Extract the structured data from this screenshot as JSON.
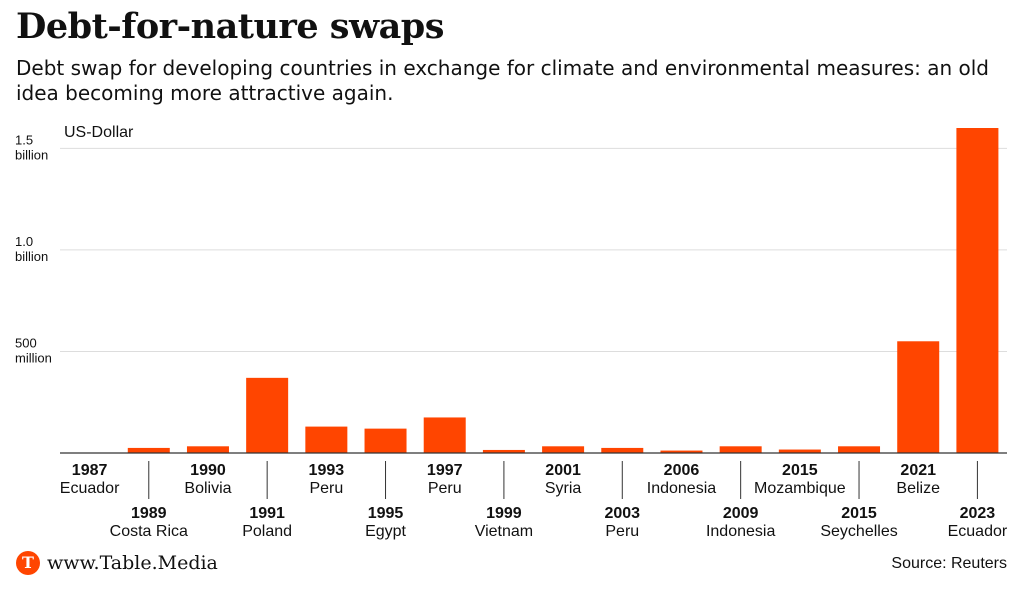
{
  "title": "Debt-for-nature swaps",
  "subtitle": "Debt swap for developing countries in exchange for climate and environmental measures: an old idea becoming more attractive again.",
  "footer": {
    "logo_letter": "T",
    "site": "www.Table.Media",
    "source": "Source: Reuters"
  },
  "colors": {
    "bar": "#ff4500",
    "grid": "#dddddd",
    "axis": "#333333",
    "text": "#111111"
  },
  "chart_data": {
    "type": "bar",
    "ylabel": "US-Dollar",
    "ylim": [
      0,
      1600000000
    ],
    "yticks": [
      {
        "value": 500000000,
        "line1": "500",
        "line2": "million"
      },
      {
        "value": 1000000000,
        "line1": "1.0",
        "line2": "billion"
      },
      {
        "value": 1500000000,
        "line1": "1.5",
        "line2": "billion"
      }
    ],
    "grid": true,
    "legend": "none",
    "categories": [
      {
        "year": "1987",
        "country": "Ecuador"
      },
      {
        "year": "1989",
        "country": "Costa Rica"
      },
      {
        "year": "1990",
        "country": "Bolivia"
      },
      {
        "year": "1991",
        "country": "Poland"
      },
      {
        "year": "1993",
        "country": "Peru"
      },
      {
        "year": "1995",
        "country": "Egypt"
      },
      {
        "year": "1997",
        "country": "Peru"
      },
      {
        "year": "1999",
        "country": "Vietnam"
      },
      {
        "year": "2001",
        "country": "Syria"
      },
      {
        "year": "2003",
        "country": "Peru"
      },
      {
        "year": "2006",
        "country": "Indonesia"
      },
      {
        "year": "2009",
        "country": "Indonesia"
      },
      {
        "year": "2015",
        "country": "Mozambique"
      },
      {
        "year": "2015",
        "country": "Seychelles"
      },
      {
        "year": "2021",
        "country": "Belize"
      },
      {
        "year": "2023",
        "country": "Ecuador"
      }
    ],
    "values": [
      2000000,
      25000000,
      33000000,
      370000000,
      130000000,
      120000000,
      175000000,
      15000000,
      33000000,
      25000000,
      12000000,
      33000000,
      17000000,
      33000000,
      550000000,
      1600000000
    ]
  }
}
